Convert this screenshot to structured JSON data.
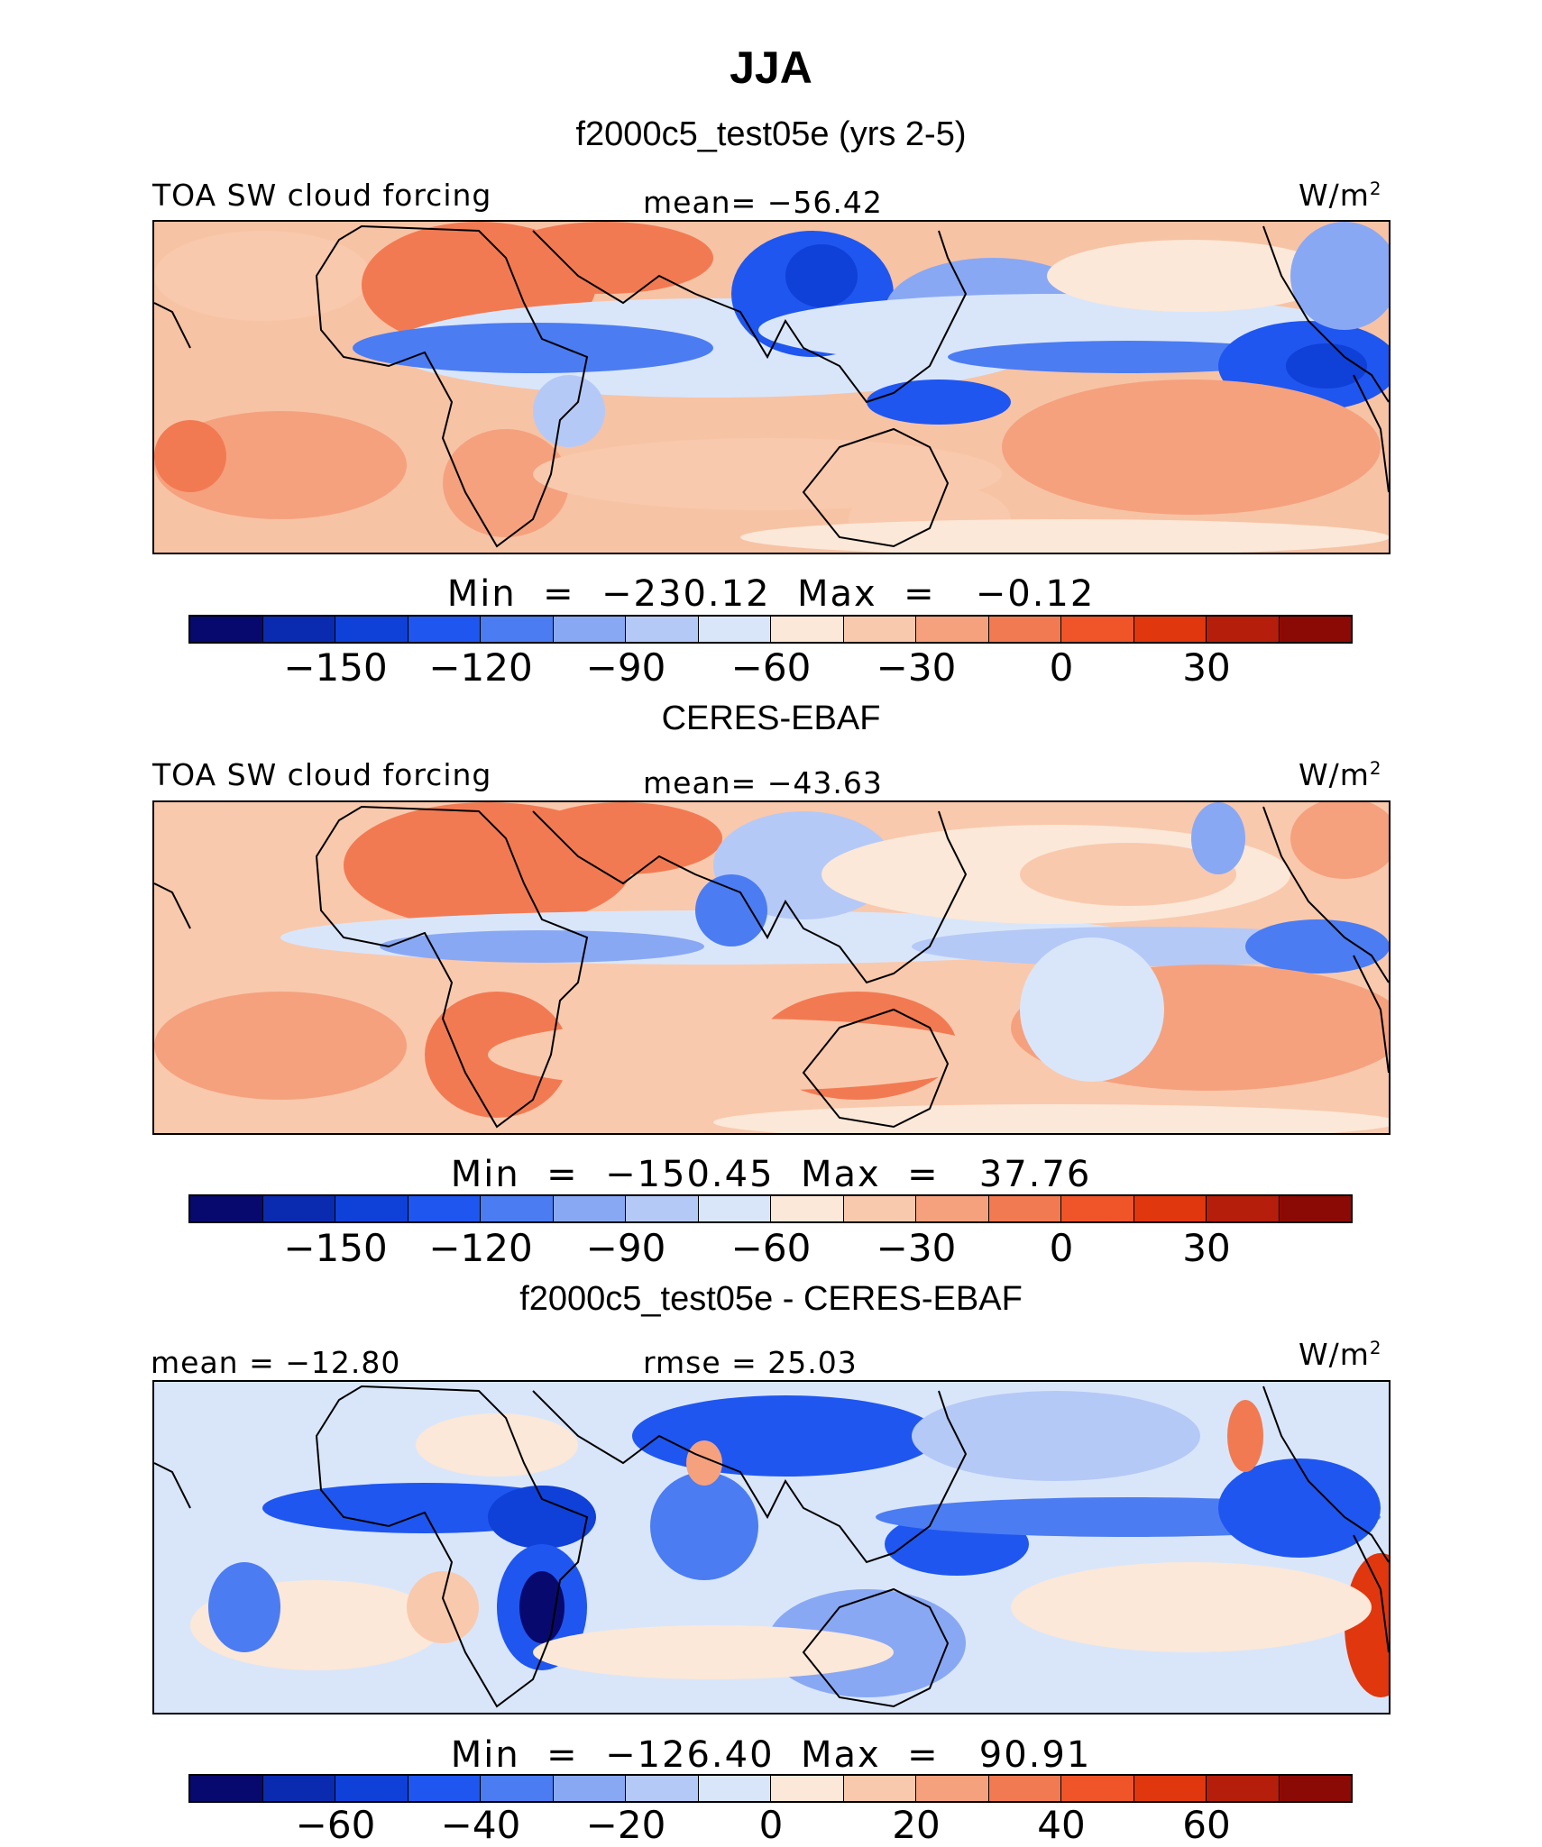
{
  "title": "JJA",
  "palette": [
    "#08096e",
    "#0a2bb0",
    "#0f40d8",
    "#1f56f0",
    "#4b7cf2",
    "#89a8f4",
    "#b5c9f7",
    "#d9e6fa",
    "#fbe8d8",
    "#f9c9ad",
    "#f5a17e",
    "#f27a52",
    "#ef5528",
    "#e0370f",
    "#b41e0b",
    "#8b0a05"
  ],
  "panels": [
    {
      "subtitle": "f2000c5_test05e (yrs 2-5)",
      "left_label": "TOA SW cloud forcing",
      "center_label": "mean=  −56.42",
      "units_base": "W/m",
      "units_exp": "2",
      "minmax": "Min  =  −230.12  Max  =   −0.12",
      "ticks": [
        "−150",
        "−120",
        "−90",
        "−60",
        "−30",
        "0",
        "30"
      ]
    },
    {
      "subtitle": "CERES-EBAF",
      "left_label": "TOA SW cloud forcing",
      "center_label": "mean=  −43.63",
      "units_base": "W/m",
      "units_exp": "2",
      "minmax": "Min  =  −150.45  Max  =   37.76",
      "ticks": [
        "−150",
        "−120",
        "−90",
        "−60",
        "−30",
        "0",
        "30"
      ]
    },
    {
      "subtitle": "f2000c5_test05e - CERES-EBAF",
      "left_label": "mean  =  −12.80",
      "center_label": "rmse  =   25.03",
      "units_base": "W/m",
      "units_exp": "2",
      "minmax": "Min  =  −126.40  Max  =   90.91",
      "ticks": [
        "−60",
        "−40",
        "−20",
        "0",
        "20",
        "40",
        "60"
      ]
    }
  ]
}
